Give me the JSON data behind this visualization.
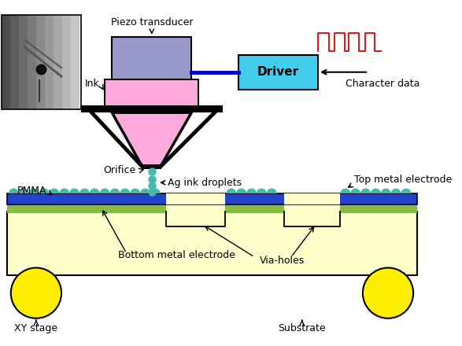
{
  "bg": "#ffffff",
  "piezo_fill": "#9999cc",
  "ink_fill": "#ffaadd",
  "driver_fill": "#44ccee",
  "substrate_fill": "#ffffcc",
  "green_fill": "#88bb44",
  "blue_fill": "#2244cc",
  "teal_fill": "#44bbaa",
  "yellow_fill": "#ffee00",
  "signal_color": "#cc2222",
  "piezo_text": "Piezo transducer",
  "ink_text": "Ink",
  "orifice_text": "Orifice",
  "droplets_text": "Ag ink droplets",
  "pmma_text": "PMMA",
  "top_elec_text": "Top metal electrode",
  "bot_elec_text": "Bottom metal electrode",
  "via_text": "Via-holes",
  "xy_text": "XY stage",
  "sub_text": "Substrate",
  "char_text": "Character data",
  "driver_text": "Driver"
}
